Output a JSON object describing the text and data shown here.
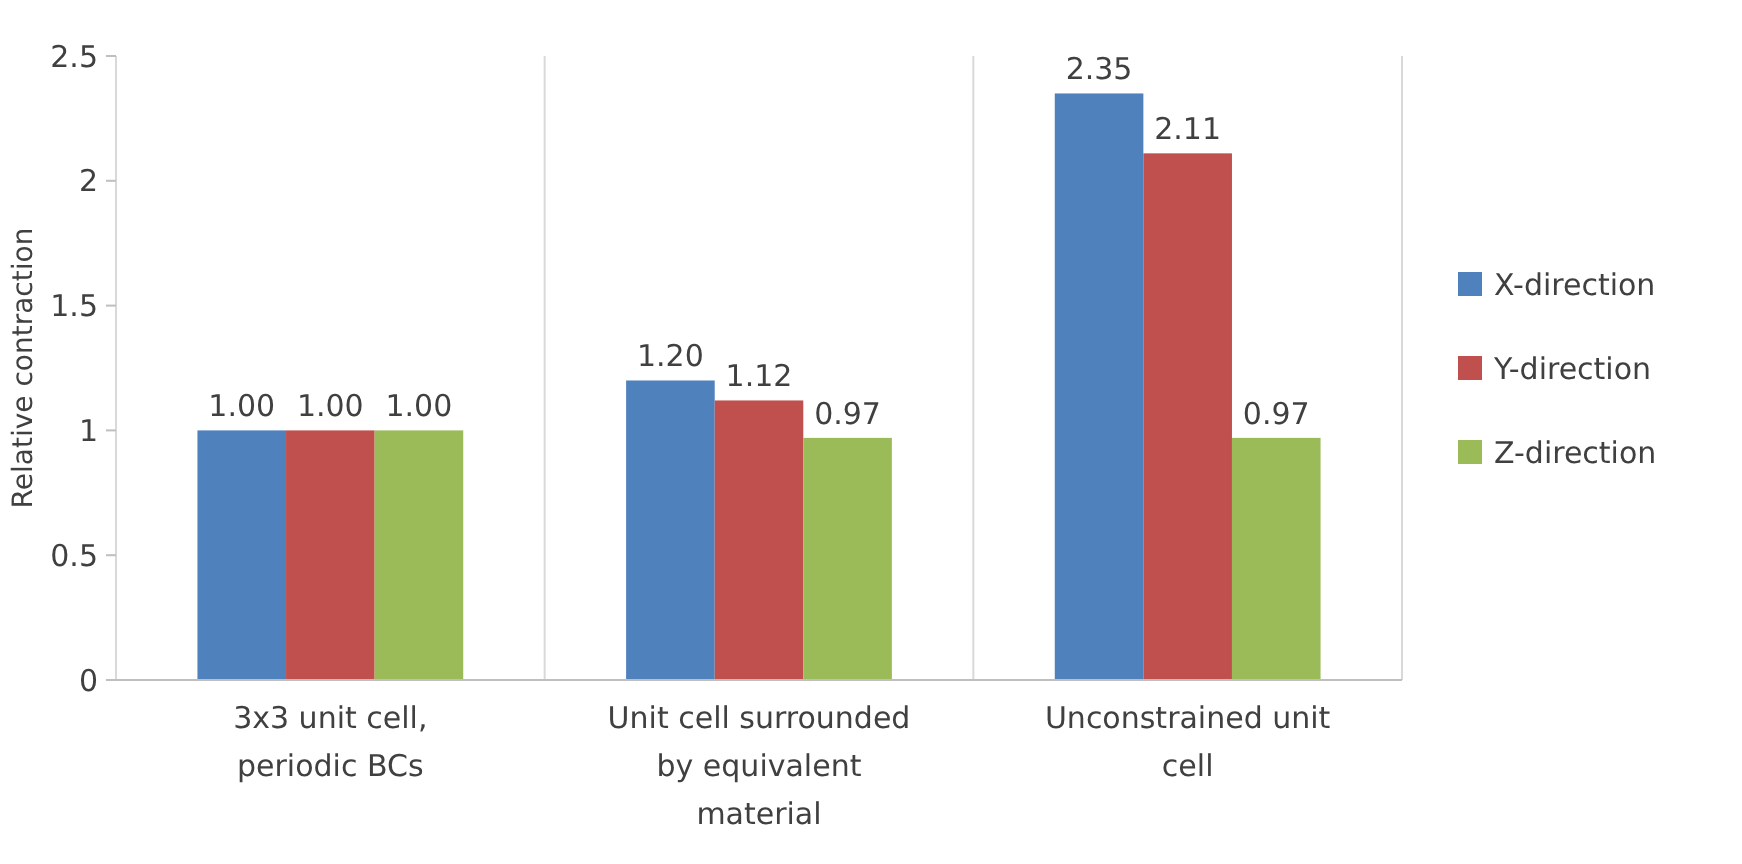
{
  "chart_data": {
    "type": "bar",
    "ylabel": "Relative contraction",
    "categories": [
      "3x3 unit cell, periodic BCs",
      "Unit cell surrounded by equivalent material",
      "Unconstrained unit cell"
    ],
    "series": [
      {
        "name": "X-direction",
        "color": "#4f81bd",
        "values": [
          1,
          1.2,
          2.35
        ],
        "value_labels": [
          "1.00",
          "1.20",
          "2.35"
        ]
      },
      {
        "name": "Y-direction",
        "color": "#c0504d",
        "values": [
          1,
          1.12,
          2.11
        ],
        "value_labels": [
          "1.00",
          "1.12",
          "2.11"
        ]
      },
      {
        "name": "Z-direction",
        "color": "#9bbb59",
        "values": [
          1,
          0.97,
          0.97
        ],
        "value_labels": [
          "1.00",
          "0.97",
          "0.97"
        ]
      }
    ],
    "ylim": [
      0,
      2.5
    ],
    "yticks": [
      0,
      0.5,
      1,
      1.5,
      2,
      2.5
    ],
    "grid": "x",
    "legend": "right"
  }
}
